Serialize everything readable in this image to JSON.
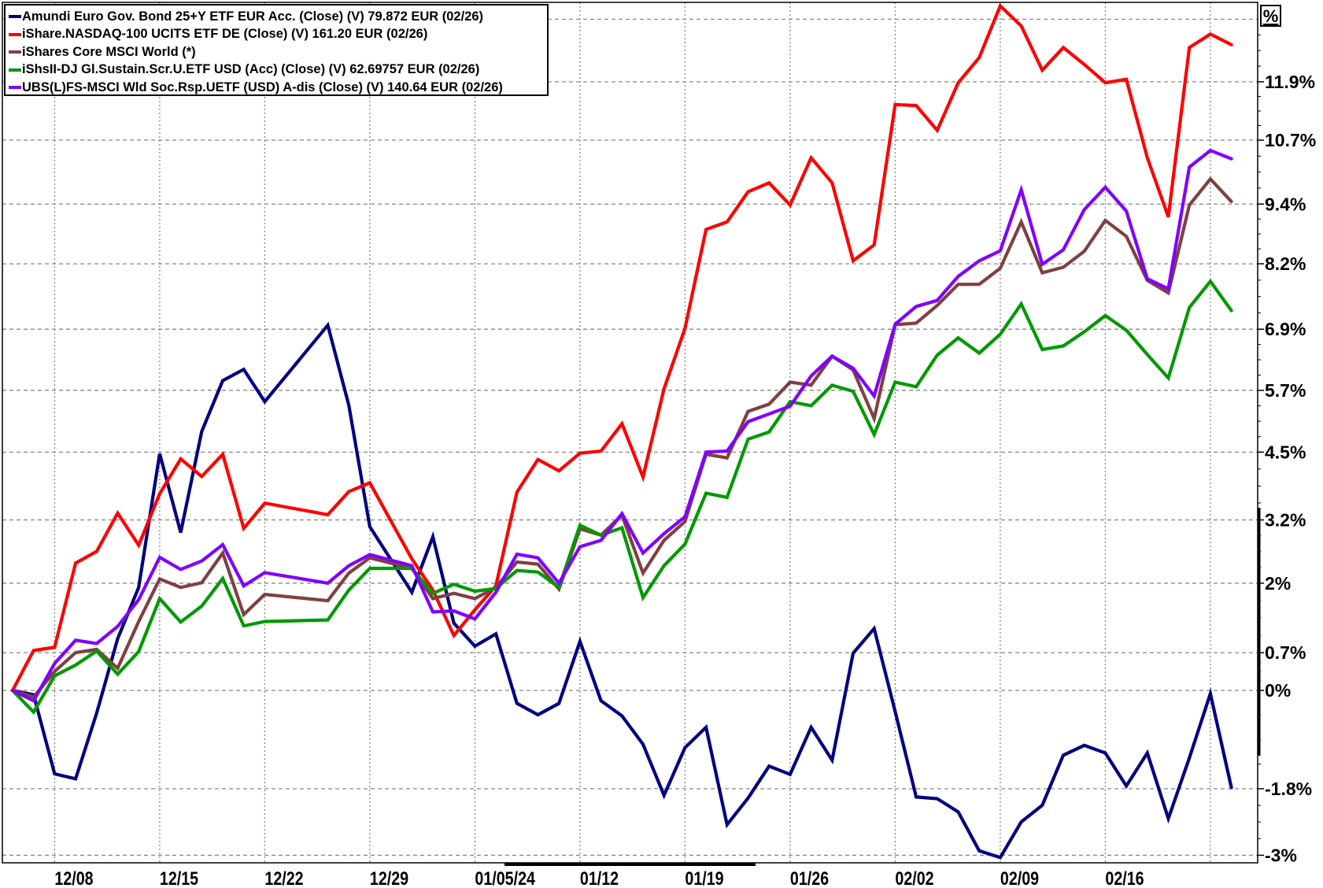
{
  "chart_data": {
    "type": "line",
    "yscale": "log-percent",
    "ylabel": "%",
    "ylim": [
      -3.1,
      13.6
    ],
    "y_ticks": [
      {
        "value": 11.9,
        "label": "11.9%"
      },
      {
        "value": 10.7,
        "label": "10.7%"
      },
      {
        "value": 9.4,
        "label": "9.4%"
      },
      {
        "value": 8.2,
        "label": "8.2%"
      },
      {
        "value": 6.9,
        "label": "6.9%"
      },
      {
        "value": 5.7,
        "label": "5.7%"
      },
      {
        "value": 4.5,
        "label": "4.5%"
      },
      {
        "value": 3.2,
        "label": "3.2%"
      },
      {
        "value": 2,
        "label": "2%"
      },
      {
        "value": 0.7,
        "label": "0.7%"
      },
      {
        "value": 0,
        "label": "0%"
      },
      {
        "value": -1.8,
        "label": "-1.8%"
      },
      {
        "value": -3,
        "label": "-3%"
      }
    ],
    "y_grid_extra": [
      13.2
    ],
    "x_ticks": [
      {
        "date": "2023-12-08",
        "label": "12/08"
      },
      {
        "date": "2023-12-15",
        "label": "12/15"
      },
      {
        "date": "2023-12-22",
        "label": "12/22"
      },
      {
        "date": "2023-12-29",
        "label": "12/29"
      },
      {
        "date": "2024-01-05",
        "label": "01/05/24"
      },
      {
        "date": "2024-01-12",
        "label": "01/12"
      },
      {
        "date": "2024-01-19",
        "label": "01/19"
      },
      {
        "date": "2024-01-26",
        "label": "01/26"
      },
      {
        "date": "2024-02-02",
        "label": "02/02"
      },
      {
        "date": "2024-02-09",
        "label": "02/09"
      },
      {
        "date": "2024-02-16",
        "label": "02/16"
      }
    ],
    "x_grid_extra": [
      "2024-02-23"
    ],
    "x": [
      "2023-12-06",
      "2023-12-07",
      "2023-12-08",
      "2023-12-11",
      "2023-12-12",
      "2023-12-13",
      "2023-12-14",
      "2023-12-15",
      "2023-12-18",
      "2023-12-19",
      "2023-12-20",
      "2023-12-21",
      "2023-12-22",
      "2023-12-27",
      "2023-12-28",
      "2023-12-29",
      "2024-01-02",
      "2024-01-03",
      "2024-01-04",
      "2024-01-05",
      "2024-01-08",
      "2024-01-09",
      "2024-01-10",
      "2024-01-11",
      "2024-01-12",
      "2024-01-15",
      "2024-01-16",
      "2024-01-17",
      "2024-01-18",
      "2024-01-19",
      "2024-01-22",
      "2024-01-23",
      "2024-01-24",
      "2024-01-25",
      "2024-01-26",
      "2024-01-29",
      "2024-01-30",
      "2024-01-31",
      "2024-02-01",
      "2024-02-02",
      "2024-02-05",
      "2024-02-06",
      "2024-02-07",
      "2024-02-08",
      "2024-02-09",
      "2024-02-12",
      "2024-02-13",
      "2024-02-14",
      "2024-02-15",
      "2024-02-16",
      "2024-02-19",
      "2024-02-20",
      "2024-02-21",
      "2024-02-22",
      "2024-02-23",
      "2024-02-26"
    ],
    "series": [
      {
        "name": "Amundi Euro Gov. Bond 25+Y ETF EUR Acc. (Close) (V) 79.872 EUR (02/26)",
        "color": "#000080",
        "values": [
          0,
          -0.08,
          -1.53,
          -1.62,
          -0.42,
          0.96,
          1.92,
          4.47,
          2.96,
          4.9,
          5.89,
          6.11,
          5.48,
          6.98,
          5.41,
          3.07,
          1.83,
          2.88,
          1.25,
          0.82,
          1.05,
          -0.24,
          -0.45,
          -0.24,
          0.91,
          -0.19,
          -0.47,
          -0.99,
          -1.92,
          -1.05,
          -0.68,
          -2.45,
          -1.97,
          -1.39,
          -1.54,
          -0.68,
          -1.28,
          0.69,
          1.15,
          -0.39,
          -1.95,
          -1.98,
          -2.22,
          -2.92,
          -3.04,
          -2.4,
          -2.1,
          -1.19,
          -1.01,
          -1.15,
          -1.75,
          -1.15,
          -2.34,
          -1.24,
          -0.06,
          -1.78
        ]
      },
      {
        "name": "iShare.NASDAQ-100 UCITS ETF DE (Close) (V) 161.20 EUR (02/26)",
        "color": "#ff0000",
        "values": [
          0,
          0.74,
          0.8,
          2.38,
          2.6,
          3.33,
          2.72,
          3.7,
          4.37,
          4.03,
          4.46,
          3.04,
          3.52,
          3.3,
          3.74,
          3.91,
          2.46,
          1.87,
          1.02,
          1.5,
          1.95,
          3.73,
          4.36,
          4.14,
          4.48,
          4.52,
          5.05,
          4.02,
          5.73,
          6.92,
          8.89,
          9.04,
          9.65,
          9.83,
          9.38,
          10.34,
          9.83,
          8.26,
          8.58,
          11.43,
          11.41,
          10.9,
          11.88,
          12.4,
          13.48,
          13.06,
          12.14,
          12.61,
          12.26,
          11.88,
          11.95,
          10.34,
          9.14,
          12.61,
          12.89,
          12.67
        ]
      },
      {
        "name": "iShares Core MSCI World (*)",
        "color": "#804040",
        "values": [
          0,
          -0.12,
          0.35,
          0.7,
          0.76,
          0.41,
          1.28,
          2.08,
          1.92,
          2.01,
          2.57,
          1.41,
          1.79,
          1.67,
          2.19,
          2.48,
          2.28,
          1.71,
          1.81,
          1.71,
          1.92,
          2.4,
          2.36,
          1.89,
          3.03,
          2.91,
          3.29,
          2.19,
          2.81,
          3.17,
          4.46,
          4.39,
          5.29,
          5.43,
          5.86,
          5.8,
          6.37,
          6.1,
          5.15,
          6.99,
          7.02,
          7.37,
          7.79,
          7.79,
          8.11,
          9.04,
          8.02,
          8.13,
          8.45,
          9.07,
          8.75,
          7.87,
          7.62,
          9.38,
          9.91,
          9.45
        ]
      },
      {
        "name": "iShsII-DJ Gl.Sustain.Scr.U.ETF USD (Acc) (Close) (V) 62.69757 EUR (02/26)",
        "color": "#009900",
        "values": [
          0,
          -0.4,
          0.27,
          0.47,
          0.73,
          0.3,
          0.72,
          1.71,
          1.27,
          1.57,
          2.09,
          1.2,
          1.28,
          1.31,
          1.87,
          2.28,
          2.28,
          1.81,
          1.98,
          1.85,
          1.9,
          2.24,
          2.21,
          1.92,
          3.1,
          2.91,
          3.05,
          1.73,
          2.33,
          2.74,
          3.71,
          3.63,
          4.75,
          4.89,
          5.48,
          5.4,
          5.8,
          5.68,
          4.84,
          5.86,
          5.77,
          6.39,
          6.73,
          6.43,
          6.8,
          7.4,
          6.5,
          6.57,
          6.85,
          7.17,
          6.88,
          6.4,
          5.94,
          7.33,
          7.85,
          7.27
        ]
      },
      {
        "name": "UBS(L)FS-MSCI Wld Soc.Rsp.UETF (USD) A-dis (Close) (V) 140.64 EUR (02/26)",
        "color": "#8000ff",
        "values": [
          0,
          -0.19,
          0.5,
          0.93,
          0.87,
          1.19,
          1.69,
          2.49,
          2.26,
          2.42,
          2.73,
          1.95,
          2.2,
          2.0,
          2.33,
          2.54,
          2.33,
          1.46,
          1.48,
          1.33,
          1.83,
          2.55,
          2.48,
          2.0,
          2.69,
          2.81,
          3.32,
          2.57,
          2.94,
          3.26,
          4.5,
          4.52,
          5.09,
          5.24,
          5.39,
          5.98,
          6.37,
          6.13,
          5.59,
          7.0,
          7.35,
          7.47,
          7.95,
          8.26,
          8.46,
          9.69,
          8.19,
          8.48,
          9.29,
          9.74,
          9.26,
          7.9,
          7.7,
          10.15,
          10.49,
          10.32
        ]
      }
    ],
    "legend": "top-left",
    "grid": true
  }
}
